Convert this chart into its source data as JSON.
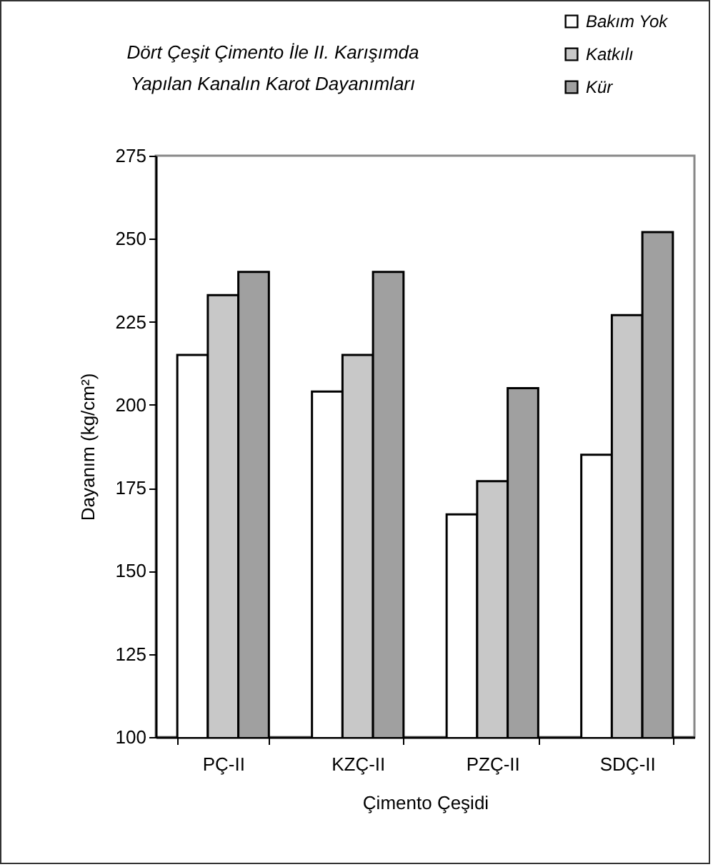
{
  "chart_data": {
    "type": "bar",
    "title": "Dört Çeşit Çimento İle II. Karışımda\nYapılan Kanalın Karot Dayanımları",
    "xlabel": "Çimento Çeşidi",
    "ylabel": "Dayanım (kg/cm²)",
    "categories": [
      "PÇ-II",
      "KZÇ-II",
      "PZÇ-II",
      "SDÇ-II"
    ],
    "series": [
      {
        "name": "Bakım Yok",
        "color": "#ffffff",
        "values": [
          215,
          204,
          167,
          185
        ]
      },
      {
        "name": "Katkılı",
        "color": "#c8c8c8",
        "values": [
          233,
          215,
          177,
          227
        ]
      },
      {
        "name": "Kür",
        "color": "#a0a0a0",
        "values": [
          240,
          240,
          205,
          252
        ]
      }
    ],
    "ylim": [
      100,
      275
    ],
    "yticks": [
      100,
      125,
      150,
      175,
      200,
      225,
      250,
      275
    ],
    "grid": false,
    "legend": "top right"
  }
}
